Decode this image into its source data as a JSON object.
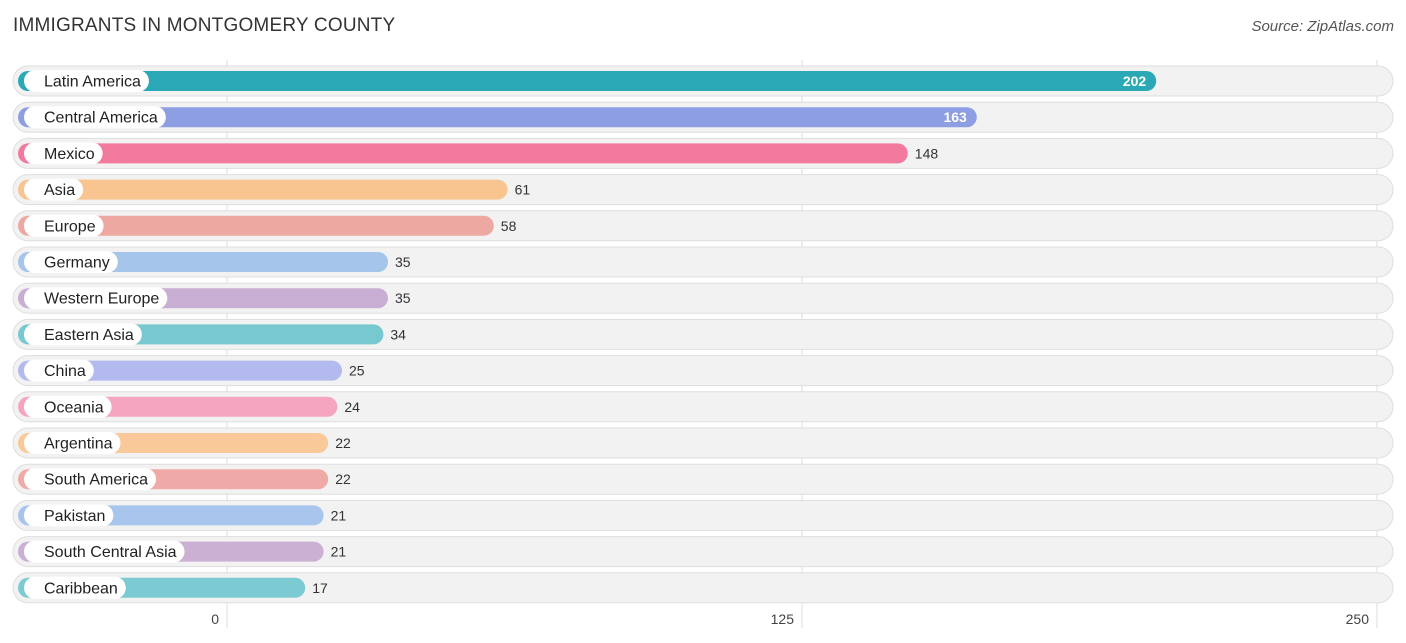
{
  "title": "IMMIGRANTS IN MONTGOMERY COUNTY",
  "source": "Source: ZipAtlas.com",
  "chart_data": {
    "type": "bar",
    "orientation": "horizontal",
    "categories": [
      "Latin America",
      "Central America",
      "Mexico",
      "Asia",
      "Europe",
      "Germany",
      "Western Europe",
      "Eastern Asia",
      "China",
      "Oceania",
      "Argentina",
      "South America",
      "Pakistan",
      "South Central Asia",
      "Caribbean"
    ],
    "values": [
      202,
      163,
      148,
      61,
      58,
      35,
      35,
      34,
      25,
      24,
      22,
      22,
      21,
      21,
      17
    ],
    "colors": [
      "#2ba8b5",
      "#8d9ee3",
      "#f27a9f",
      "#f8c48f",
      "#eea8a2",
      "#a5c5ea",
      "#c8aed2",
      "#78c8cf",
      "#b3baee",
      "#f6a5c0",
      "#f9c999",
      "#efaaa7",
      "#a8c6ed",
      "#cbb0d3",
      "#7ccbd2"
    ],
    "xlim": [
      0,
      250
    ],
    "xticks": [
      0,
      125,
      250
    ],
    "grid": true
  }
}
